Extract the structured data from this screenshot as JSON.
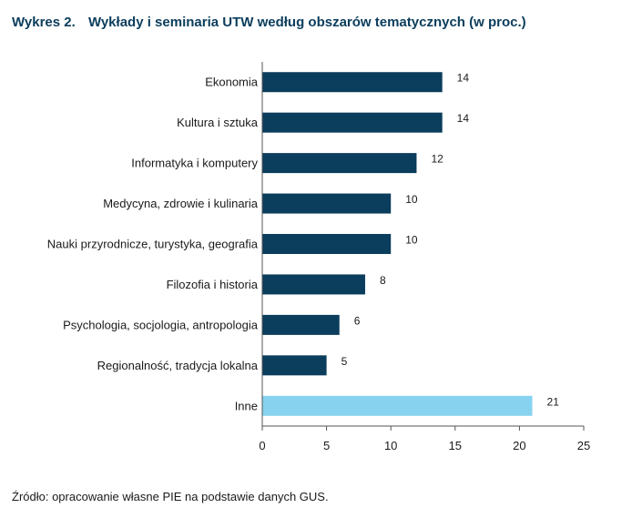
{
  "figure": {
    "number": "Wykres 2.",
    "title": "Wykłady i seminaria UTW według obszarów tematycznych (w proc.)",
    "source": "Źródło: opracowanie własne PIE na podstawie danych GUS."
  },
  "chart_data": {
    "type": "bar",
    "orientation": "horizontal",
    "title": "Wykłady i seminaria UTW według obszarów tematycznych (w proc.)",
    "categories": [
      "Ekonomia",
      "Kultura i sztuka",
      "Informatyka i komputery",
      "Medycyna, zdrowie i kulinaria",
      "Nauki przyrodnicze, turystyka, geografia",
      "Filozofia i historia",
      "Psychologia, socjologia, antropologia",
      "Regionalność, tradycja lokalna",
      "Inne"
    ],
    "values": [
      14,
      14,
      12,
      10,
      10,
      8,
      6,
      5,
      21
    ],
    "colors": [
      "#0b3d5c",
      "#0b3d5c",
      "#0b3d5c",
      "#0b3d5c",
      "#0b3d5c",
      "#0b3d5c",
      "#0b3d5c",
      "#0b3d5c",
      "#87d3ef"
    ],
    "xlim": [
      0,
      25
    ],
    "xticks": [
      0,
      5,
      10,
      15,
      20,
      25
    ],
    "xlabel": "",
    "ylabel": "",
    "grid": false,
    "data_labels": true
  }
}
